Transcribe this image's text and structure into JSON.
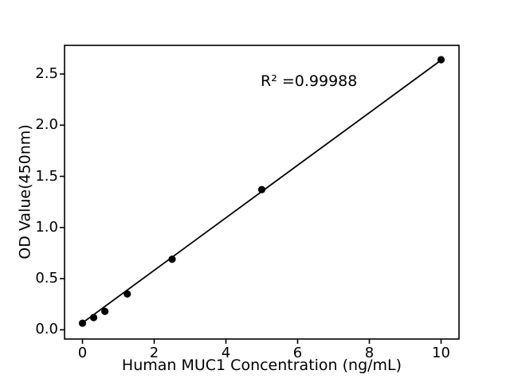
{
  "figure": {
    "background": "#ffffff"
  },
  "chart_data": {
    "type": "scatter",
    "title": "",
    "xlabel": "Human MUC1 Concentration (ng/mL)",
    "ylabel": "OD Value(450nm)",
    "annotation": "R² =0.99988",
    "r_squared": 0.99988,
    "series": [
      {
        "name": "standard-points",
        "x": [
          0,
          0.3125,
          0.625,
          1.25,
          2.5,
          5,
          10
        ],
        "y": [
          0.065,
          0.12,
          0.18,
          0.35,
          0.69,
          1.37,
          2.64
        ],
        "marker": "circle",
        "color": "#000000"
      }
    ],
    "fit_line": {
      "x1": 0,
      "y1": 0.068,
      "x2": 10,
      "y2": 2.635,
      "color": "#000000"
    },
    "x_ticks": {
      "values": [
        0,
        2,
        4,
        6,
        8,
        10
      ],
      "labels": [
        "0",
        "2",
        "4",
        "6",
        "8",
        "10"
      ]
    },
    "y_ticks": {
      "values": [
        0,
        0.5,
        1,
        1.5,
        2,
        2.5
      ],
      "labels": [
        "0.0",
        "0.5",
        "1.0",
        "1.5",
        "2.0",
        "2.5"
      ]
    },
    "xlim": [
      -0.5,
      10.5
    ],
    "ylim": [
      -0.09,
      2.78
    ],
    "grid": false,
    "legend": "none",
    "axis_color": "#000000",
    "background": "#ffffff"
  }
}
